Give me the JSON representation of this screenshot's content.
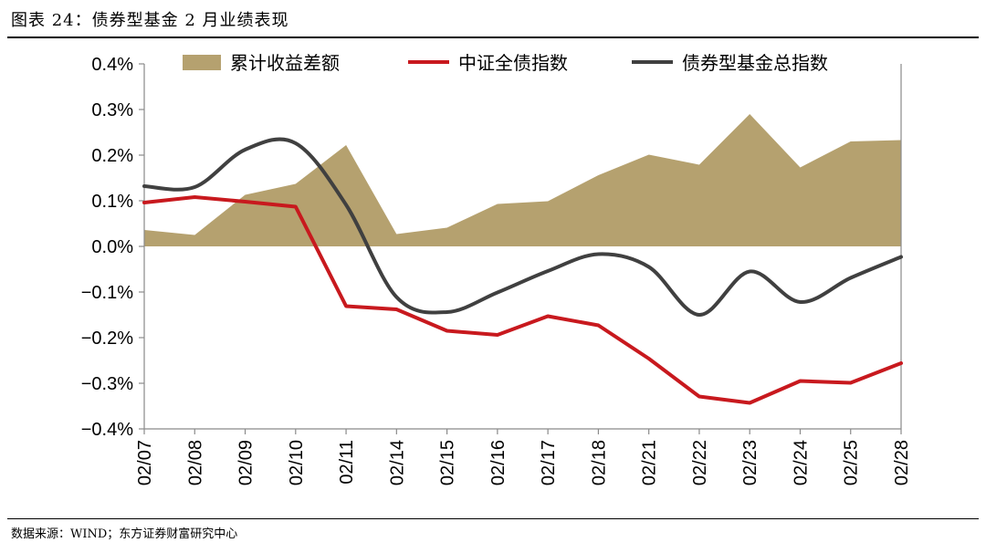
{
  "header": {
    "title": "图表 24：债券型基金 2 月业绩表现"
  },
  "footer": {
    "source": "数据来源：WIND；东方证券财富研究中心"
  },
  "chart_data": {
    "type": "line",
    "title": "图表 24：债券型基金 2 月业绩表现",
    "xlabel": "",
    "ylabel": "",
    "ylim": [
      -0.4,
      0.4
    ],
    "yticks": [
      0.4,
      0.3,
      0.2,
      0.1,
      0.0,
      -0.1,
      -0.2,
      -0.3,
      -0.4
    ],
    "ytick_labels": [
      "0.4%",
      "0.3%",
      "0.2%",
      "0.1%",
      "0.0%",
      "−0.1%",
      "−0.2%",
      "−0.3%",
      "−0.4%"
    ],
    "categories": [
      "02/07",
      "02/08",
      "02/09",
      "02/10",
      "02/11",
      "02/14",
      "02/15",
      "02/16",
      "02/17",
      "02/18",
      "02/21",
      "02/22",
      "02/23",
      "02/24",
      "02/25",
      "02/28"
    ],
    "grid": false,
    "legend_position": "top",
    "series": [
      {
        "name": "累计收益差额",
        "type": "area",
        "color": "#B5A16F",
        "values": [
          0.036,
          0.025,
          0.113,
          0.137,
          0.222,
          0.027,
          0.041,
          0.093,
          0.099,
          0.156,
          0.201,
          0.179,
          0.29,
          0.173,
          0.23,
          0.233
        ]
      },
      {
        "name": "中证全债指数",
        "type": "line",
        "color": "#C8191E",
        "values": [
          0.096,
          0.108,
          0.098,
          0.087,
          -0.131,
          -0.138,
          -0.185,
          -0.194,
          -0.153,
          -0.173,
          -0.246,
          -0.329,
          -0.343,
          -0.295,
          -0.299,
          -0.256
        ]
      },
      {
        "name": "债券型基金总指数",
        "type": "line",
        "color": "#404040",
        "values": [
          0.132,
          0.13,
          0.212,
          0.226,
          0.091,
          -0.111,
          -0.144,
          -0.101,
          -0.054,
          -0.017,
          -0.045,
          -0.15,
          -0.055,
          -0.122,
          -0.069,
          -0.023
        ]
      }
    ]
  }
}
